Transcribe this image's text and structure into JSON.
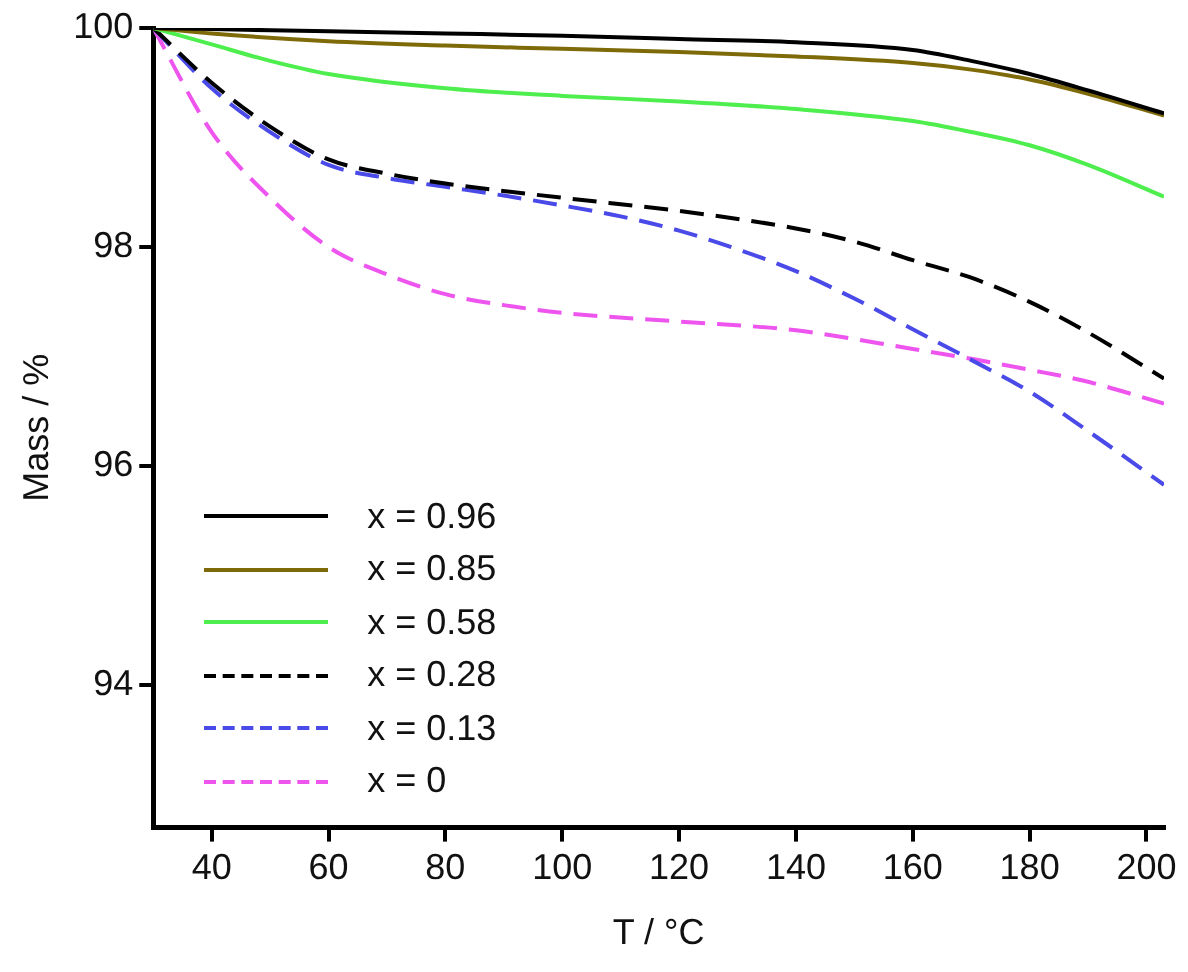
{
  "chart_data": {
    "type": "line",
    "xlabel": "T / °C",
    "ylabel": "Mass / %",
    "xlim": [
      30,
      203
    ],
    "ylim": [
      92.7,
      100
    ],
    "xticks": [
      40,
      60,
      80,
      100,
      120,
      140,
      160,
      180,
      200
    ],
    "yticks": [
      94,
      96,
      98,
      100
    ],
    "grid": false,
    "legend": "bottom left",
    "marker": "none",
    "series": [
      {
        "name": "x = 0.96",
        "color": "#000000",
        "line_style": "solid",
        "x": [
          30,
          40,
          60,
          80,
          100,
          120,
          140,
          160,
          170,
          180,
          190,
          203
        ],
        "values": [
          100,
          99.99,
          99.97,
          99.95,
          99.93,
          99.9,
          99.87,
          99.8,
          99.7,
          99.58,
          99.43,
          99.22
        ]
      },
      {
        "name": "x = 0.85",
        "color": "#7f6a0a",
        "line_style": "solid",
        "x": [
          30,
          40,
          60,
          80,
          100,
          120,
          140,
          160,
          170,
          180,
          190,
          203
        ],
        "values": [
          100,
          99.95,
          99.88,
          99.84,
          99.81,
          99.78,
          99.74,
          99.68,
          99.62,
          99.53,
          99.4,
          99.2
        ]
      },
      {
        "name": "x = 0.58",
        "color": "#4dee4d",
        "line_style": "solid",
        "x": [
          30,
          40,
          50,
          60,
          80,
          100,
          120,
          140,
          160,
          170,
          180,
          190,
          203
        ],
        "values": [
          100,
          99.85,
          99.7,
          99.58,
          99.45,
          99.38,
          99.33,
          99.26,
          99.15,
          99.05,
          98.93,
          98.75,
          98.46
        ]
      },
      {
        "name": "x = 0.28",
        "color": "#000000",
        "line_style": "dashed",
        "x": [
          30,
          40,
          50,
          60,
          70,
          80,
          100,
          120,
          140,
          150,
          160,
          170,
          180,
          190,
          203
        ],
        "values": [
          100,
          99.5,
          99.1,
          98.8,
          98.67,
          98.58,
          98.45,
          98.33,
          98.17,
          98.05,
          97.88,
          97.72,
          97.5,
          97.22,
          96.8
        ]
      },
      {
        "name": "x = 0.13",
        "color": "#4a4ae8",
        "line_style": "dashed",
        "x": [
          30,
          40,
          50,
          60,
          70,
          80,
          90,
          100,
          110,
          120,
          130,
          140,
          150,
          160,
          170,
          180,
          190,
          203
        ],
        "values": [
          100,
          99.45,
          99.05,
          98.75,
          98.63,
          98.55,
          98.47,
          98.38,
          98.28,
          98.15,
          97.98,
          97.78,
          97.53,
          97.25,
          96.97,
          96.68,
          96.32,
          95.83
        ]
      },
      {
        "name": "x = 0",
        "color": "#ee55ee",
        "line_style": "dashed",
        "x": [
          30,
          40,
          50,
          60,
          70,
          80,
          90,
          100,
          120,
          140,
          160,
          170,
          180,
          190,
          203
        ],
        "values": [
          100,
          99.05,
          98.45,
          98,
          97.75,
          97.57,
          97.47,
          97.4,
          97.32,
          97.24,
          97.07,
          96.98,
          96.88,
          96.77,
          96.57
        ]
      }
    ]
  }
}
